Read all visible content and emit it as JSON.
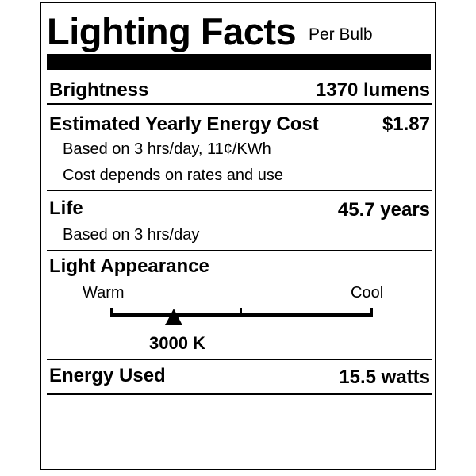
{
  "header": {
    "title": "Lighting Facts",
    "subtitle": "Per Bulb"
  },
  "brightness": {
    "label": "Brightness",
    "value": "1370 lumens"
  },
  "energy_cost": {
    "label": "Estimated Yearly Energy Cost",
    "value": "$1.87",
    "note1": "Based on 3 hrs/day, 11¢/KWh",
    "note2": "Cost depends on rates and use"
  },
  "life": {
    "label": "Life",
    "value": "45.7 years",
    "note": "Based on 3 hrs/day"
  },
  "light_appearance": {
    "label": "Light Appearance",
    "warm_label": "Warm",
    "cool_label": "Cool",
    "value": "3000 K",
    "marker_position_fraction": 0.24
  },
  "energy_used": {
    "label": "Energy Used",
    "value": "15.5 watts"
  }
}
